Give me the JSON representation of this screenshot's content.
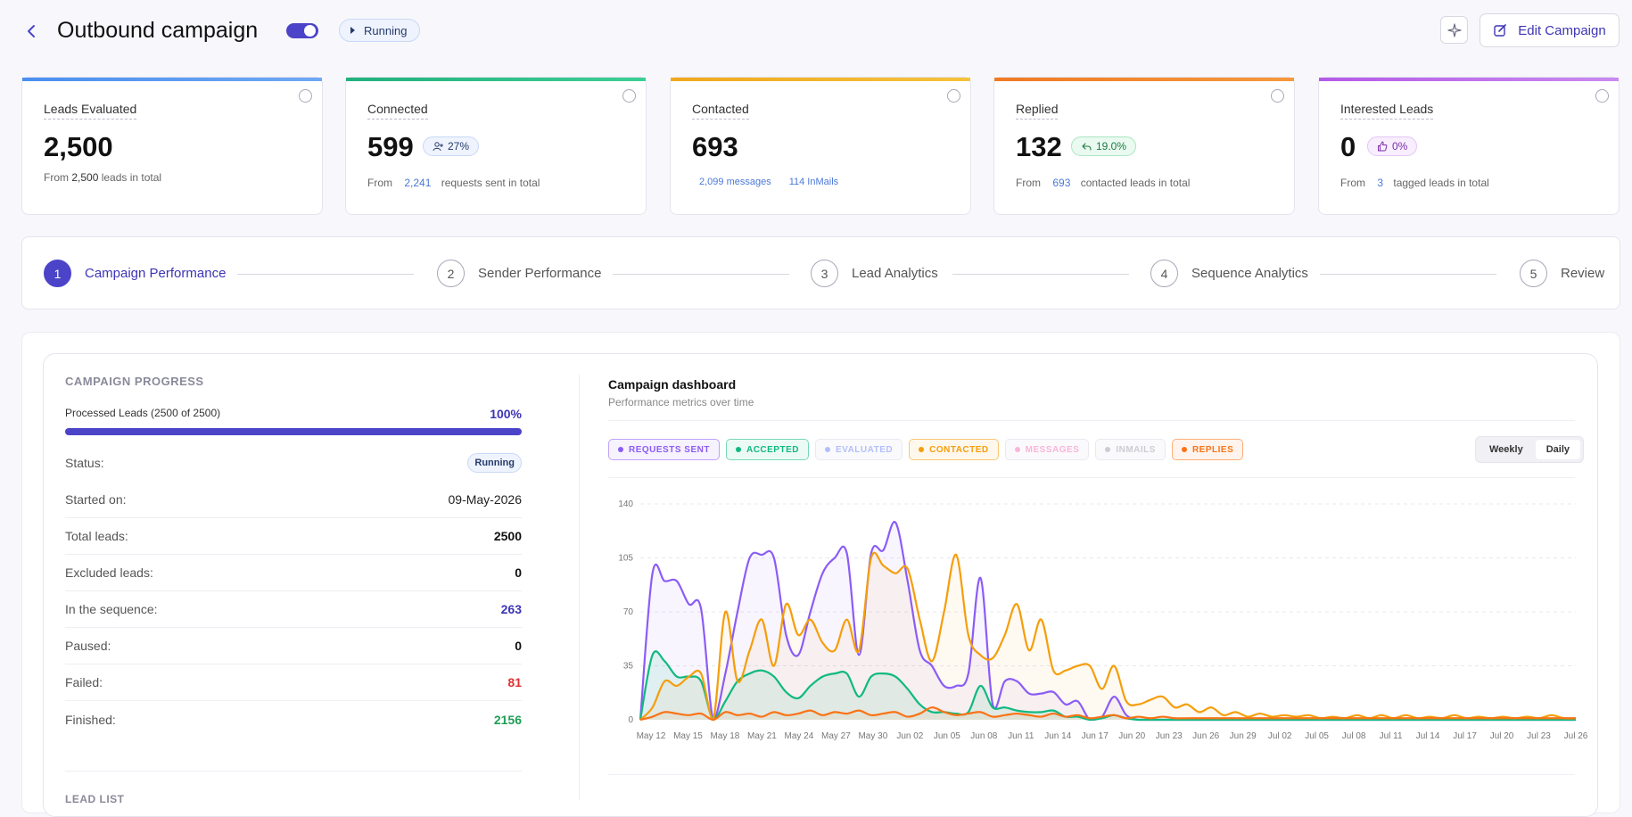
{
  "header": {
    "title": "Outbound campaign",
    "status": "Running",
    "edit_label": "Edit Campaign"
  },
  "cards": [
    {
      "label": "Leads Evaluated",
      "value": "2,500",
      "sub_pre": "From ",
      "sub_hl": "2,500",
      "sub_post": " leads in total",
      "color": "#4a8ff0"
    },
    {
      "label": "Connected",
      "value": "599",
      "badge": "27%",
      "sub_pre": "From ",
      "sub_hl": "2,241",
      "sub_post": " requests sent in total",
      "color": "#22b07d"
    },
    {
      "label": "Contacted",
      "value": "693",
      "sub_a": "2,099 messages",
      "sub_b": "114 InMails",
      "color": "#f0a81c"
    },
    {
      "label": "Replied",
      "value": "132",
      "badge": "19.0%",
      "sub_pre": "From ",
      "sub_hl": "693",
      "sub_post": " contacted leads in total",
      "color": "#f07a24"
    },
    {
      "label": "Interested Leads",
      "value": "0",
      "badge": "0%",
      "sub_pre": "From ",
      "sub_hl": "3",
      "sub_post": " tagged leads in total",
      "color": "#b55ae8"
    }
  ],
  "steps": [
    {
      "num": "1",
      "label": "Campaign Performance"
    },
    {
      "num": "2",
      "label": "Sender Performance"
    },
    {
      "num": "3",
      "label": "Lead Analytics"
    },
    {
      "num": "4",
      "label": "Sequence Analytics"
    },
    {
      "num": "5",
      "label": "Review"
    }
  ],
  "progress": {
    "title": "CAMPAIGN PROGRESS",
    "processed_label": "Processed Leads (2500 of 2500)",
    "percent": "100%",
    "fraction": 1.0,
    "rows": [
      {
        "k": "Status:",
        "v": "Running"
      },
      {
        "k": "Started on:",
        "v": "09-May-2026"
      },
      {
        "k": "Total leads:",
        "v": "2500"
      },
      {
        "k": "Excluded leads:",
        "v": "0"
      },
      {
        "k": "In the sequence:",
        "v": "263"
      },
      {
        "k": "Paused:",
        "v": "0"
      },
      {
        "k": "Failed:",
        "v": "81"
      },
      {
        "k": "Finished:",
        "v": "2156"
      }
    ],
    "lead_list": "LEAD LIST"
  },
  "dashboard": {
    "title": "Campaign dashboard",
    "subtitle": "Performance metrics over time",
    "legend": [
      {
        "label": "REQUESTS SENT",
        "color": "#8b5cf6",
        "active": true
      },
      {
        "label": "ACCEPTED",
        "color": "#10b981",
        "active": true
      },
      {
        "label": "EVALUATED",
        "color": "#a5b4fc",
        "active": false
      },
      {
        "label": "CONTACTED",
        "color": "#f59e0b",
        "active": true
      },
      {
        "label": "MESSAGES",
        "color": "#f9a8d4",
        "active": false
      },
      {
        "label": "INMAILS",
        "color": "#c4c4cc",
        "active": false
      },
      {
        "label": "REPLIES",
        "color": "#f97316",
        "active": true
      }
    ],
    "toggle": [
      "Weekly",
      "Daily"
    ],
    "toggle_active": "Daily"
  },
  "chart_data": {
    "type": "area",
    "ylim": [
      0,
      140
    ],
    "yticks": [
      0,
      35,
      70,
      105,
      140
    ],
    "xticks": [
      "May 12",
      "May 15",
      "May 18",
      "May 21",
      "May 24",
      "May 27",
      "May 30",
      "Jun 02",
      "Jun 05",
      "Jun 08",
      "Jun 11",
      "Jun 14",
      "Jun 17",
      "Jun 20",
      "Jun 23",
      "Jun 26",
      "Jun 29",
      "Jul 02",
      "Jul 05",
      "Jul 08",
      "Jul 11",
      "Jul 14",
      "Jul 17",
      "Jul 20",
      "Jul 23",
      "Jul 26"
    ],
    "series": [
      {
        "name": "REQUESTS SENT",
        "color": "#8b5cf6",
        "values": [
          0,
          95,
          90,
          90,
          75,
          72,
          0,
          30,
          70,
          105,
          107,
          105,
          55,
          42,
          70,
          95,
          105,
          108,
          42,
          108,
          110,
          128,
          90,
          45,
          35,
          22,
          22,
          30,
          92,
          10,
          25,
          25,
          17,
          17,
          18,
          10,
          12,
          0,
          2,
          15,
          3,
          0,
          0,
          0,
          0,
          0,
          0,
          0,
          0,
          0,
          0,
          0,
          0,
          0,
          0,
          0,
          0,
          0,
          0,
          0,
          0,
          0,
          0,
          0,
          0,
          0,
          0,
          0,
          0,
          0,
          0,
          0,
          0,
          0,
          0,
          0,
          0,
          0
        ]
      },
      {
        "name": "ACCEPTED",
        "color": "#10b981",
        "values": [
          0,
          42,
          38,
          28,
          28,
          25,
          0,
          12,
          25,
          30,
          32,
          28,
          18,
          14,
          22,
          28,
          30,
          30,
          15,
          28,
          30,
          28,
          20,
          10,
          5,
          5,
          4,
          5,
          22,
          8,
          8,
          6,
          5,
          5,
          6,
          2,
          2,
          0,
          1,
          3,
          1,
          0,
          0,
          0,
          0,
          0,
          0,
          0,
          0,
          0,
          0,
          0,
          0,
          0,
          0,
          0,
          0,
          0,
          0,
          0,
          0,
          0,
          0,
          0,
          0,
          0,
          0,
          0,
          0,
          0,
          0,
          0,
          0,
          0,
          0,
          0,
          0,
          0
        ]
      },
      {
        "name": "CONTACTED",
        "color": "#f59e0b",
        "values": [
          0,
          8,
          25,
          22,
          28,
          30,
          0,
          70,
          25,
          45,
          65,
          35,
          75,
          55,
          65,
          50,
          45,
          65,
          45,
          105,
          100,
          95,
          98,
          65,
          38,
          70,
          107,
          55,
          42,
          40,
          55,
          75,
          45,
          65,
          32,
          32,
          35,
          35,
          20,
          35,
          12,
          10,
          13,
          15,
          8,
          10,
          5,
          8,
          3,
          5,
          2,
          4,
          2,
          3,
          2,
          3,
          1,
          2,
          1,
          3,
          1,
          3,
          1,
          3,
          1,
          2,
          1,
          3,
          1,
          2,
          1,
          2,
          1,
          2,
          1,
          3,
          1,
          1
        ]
      },
      {
        "name": "REPLIES",
        "color": "#f97316",
        "values": [
          0,
          2,
          5,
          4,
          3,
          4,
          0,
          5,
          3,
          4,
          2,
          5,
          3,
          4,
          6,
          3,
          5,
          4,
          6,
          3,
          4,
          5,
          2,
          4,
          8,
          5,
          3,
          4,
          5,
          2,
          3,
          4,
          3,
          2,
          4,
          2,
          3,
          1,
          2,
          3,
          1,
          2,
          1,
          2,
          1,
          1,
          1,
          1,
          1,
          1,
          1,
          1,
          1,
          1,
          1,
          1,
          1,
          1,
          1,
          1,
          1,
          1,
          1,
          1,
          1,
          1,
          1,
          1,
          1,
          1,
          1,
          1,
          1,
          1,
          1,
          1,
          1,
          1
        ]
      }
    ]
  }
}
